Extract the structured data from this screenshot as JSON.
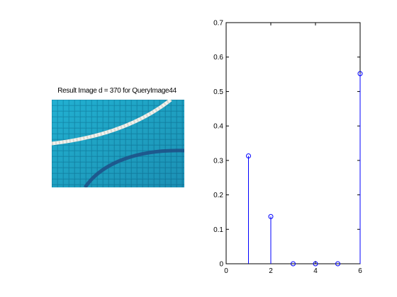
{
  "left_panel": {
    "title": "Result Image d = 370 for QueryImage44",
    "image": {
      "subject": "swimming pool tiles with white rope and shadow",
      "water_color": "#1aa3c6",
      "tile_dark_color": "#0f7ea0",
      "rope_color": "#f2f2ee",
      "shadow_color": "#1f4f86"
    }
  },
  "chart_data": {
    "type": "stem",
    "x": [
      1,
      2,
      3,
      4,
      5,
      6
    ],
    "y": [
      0.313,
      0.137,
      0.0,
      0.0,
      0.0,
      0.552
    ],
    "xlim": [
      0,
      6
    ],
    "ylim": [
      0,
      0.7
    ],
    "xticks": [
      0,
      2,
      4,
      6
    ],
    "yticks": [
      0,
      0.1,
      0.2,
      0.3,
      0.4,
      0.5,
      0.6,
      0.7
    ],
    "grid": false,
    "stem_color": "#0000ff",
    "marker": "circle-open"
  }
}
